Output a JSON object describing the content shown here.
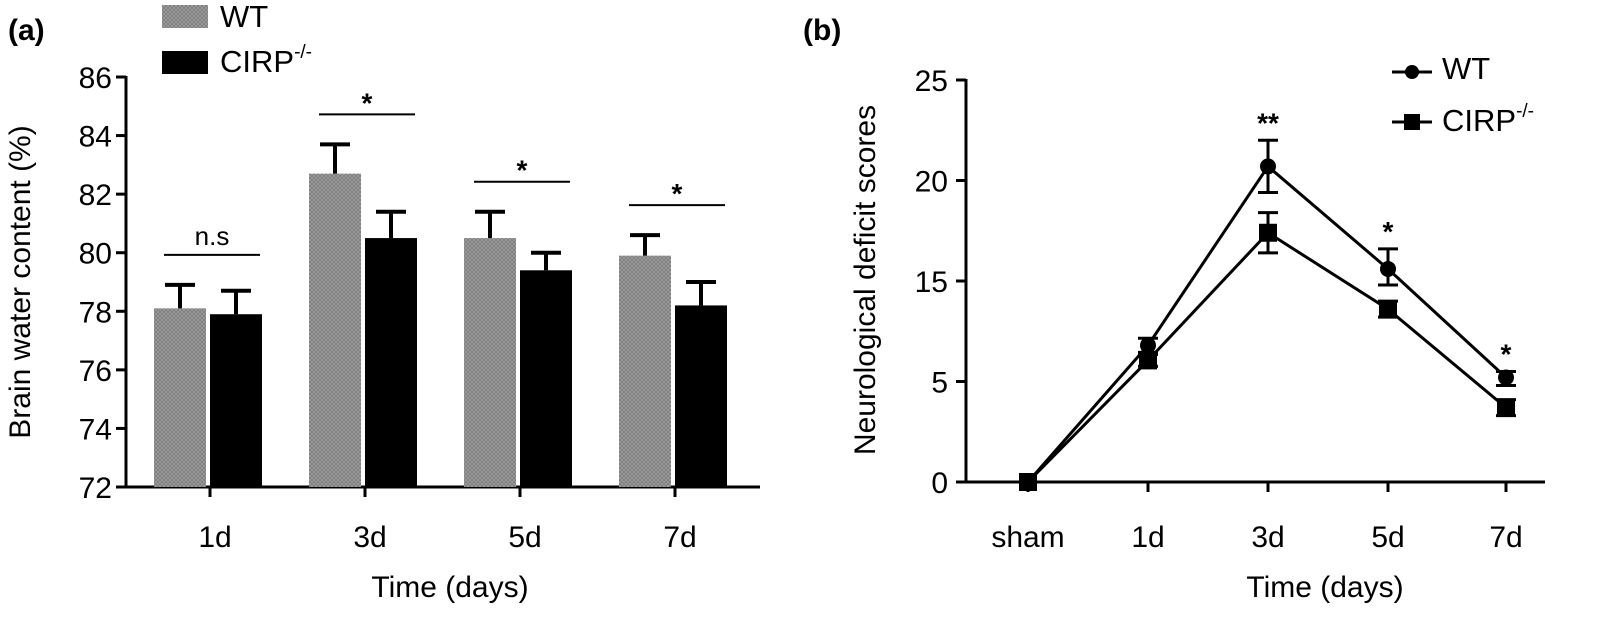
{
  "chart_data": [
    {
      "panel_label": "(a)",
      "type": "bar",
      "ylabel": "Brain water content (%)",
      "xlabel": "Time (days)",
      "ylim": [
        72,
        86
      ],
      "yticks": [
        "72",
        "74",
        "76",
        "78",
        "80",
        "82",
        "84",
        "86"
      ],
      "categories": [
        "1d",
        "3d",
        "5d",
        "7d"
      ],
      "series": [
        {
          "name": "WT",
          "values": [
            78.1,
            82.7,
            80.5,
            79.9
          ],
          "errors": [
            0.8,
            1.0,
            0.9,
            0.7
          ],
          "color": "#9a9a9a",
          "pattern": "crosshatch"
        },
        {
          "name": "CIRP",
          "name_sup": "-/-",
          "values": [
            77.9,
            80.5,
            79.4,
            78.2
          ],
          "errors": [
            0.8,
            0.9,
            0.6,
            0.8
          ],
          "color": "#000000"
        }
      ],
      "annotations": [
        "n.s",
        "*",
        "*",
        "*"
      ]
    },
    {
      "panel_label": "(b)",
      "type": "line",
      "ylabel": "Neurological deficit scores",
      "xlabel": "Time (days)",
      "ylim": [
        0,
        25
      ],
      "yticks": [
        "0",
        "5",
        "15",
        "20",
        "25"
      ],
      "categories": [
        "sham",
        "1d",
        "3d",
        "5d",
        "7d"
      ],
      "series": [
        {
          "name": "WT",
          "marker": "circle",
          "values": [
            0,
            8.6,
            20.7,
            15.6,
            5.4
          ],
          "errors": [
            0,
            0.7,
            1.3,
            1.0,
            0.6
          ]
        },
        {
          "name": "CIRP",
          "name_sup": "-/-",
          "marker": "square",
          "values": [
            0,
            7.1,
            17.4,
            12.2,
            3.7
          ],
          "errors": [
            0,
            0.6,
            1.0,
            0.8,
            0.4
          ]
        }
      ],
      "annotations": [
        "",
        "",
        "**",
        "*",
        "*"
      ]
    }
  ]
}
